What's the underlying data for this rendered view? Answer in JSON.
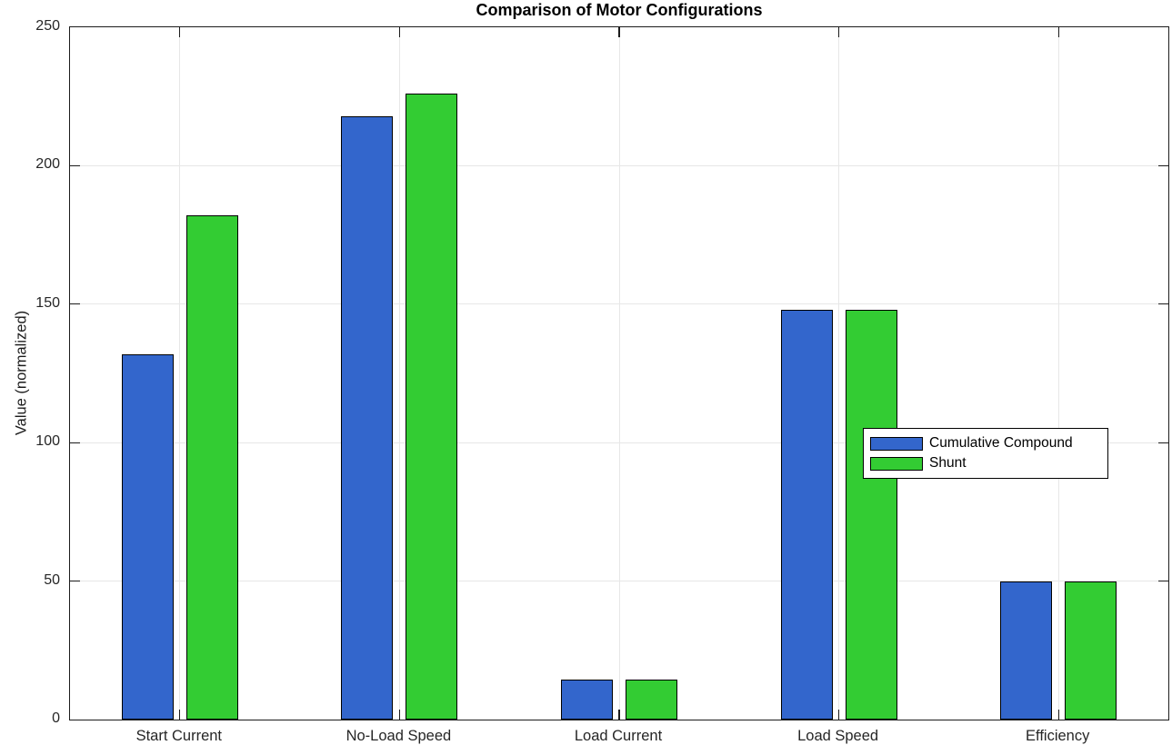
{
  "chart_data": {
    "type": "bar",
    "title": "Comparison of Motor Configurations",
    "xlabel": "",
    "ylabel": "Value (normalized)",
    "categories": [
      "Start Current",
      "No-Load Speed",
      "Load Current",
      "Load Speed",
      "Efficiency"
    ],
    "series": [
      {
        "name": "Cumulative Compound",
        "color": "#3366cc",
        "values": [
          132,
          218,
          14.5,
          148,
          50
        ]
      },
      {
        "name": "Shunt",
        "color": "#33cc33",
        "values": [
          182,
          226,
          14.5,
          148,
          50
        ]
      }
    ],
    "ylim": [
      0,
      250
    ],
    "yticks": [
      0,
      50,
      100,
      150,
      200,
      250
    ],
    "grid": true,
    "legend_position": "middle-right",
    "colors": {
      "bar_edge": "#000000",
      "grid": "#e7e7e7",
      "axes": "#1c1c1c",
      "tick_text": "#262626",
      "background": "#ffffff"
    }
  }
}
